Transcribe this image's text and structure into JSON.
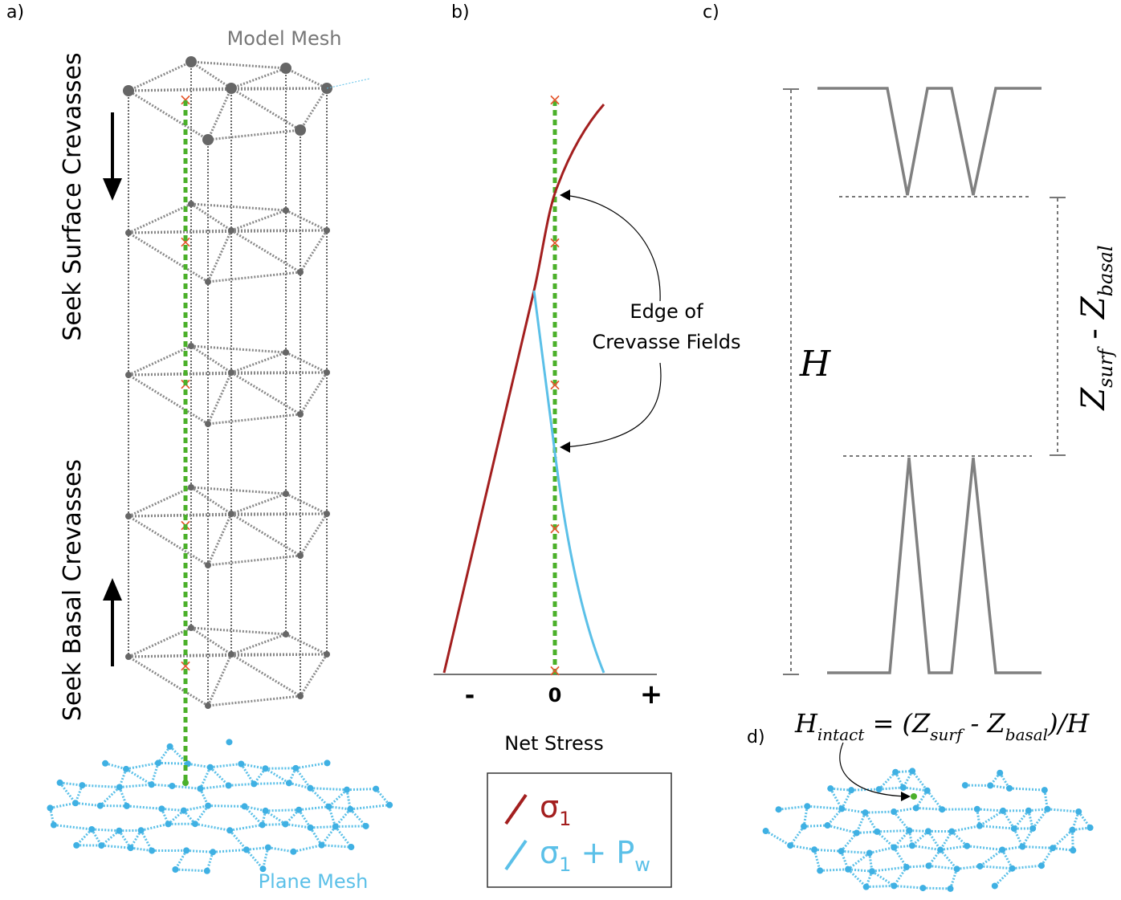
{
  "panels": {
    "a": "a)",
    "b": "b)",
    "c": "c)",
    "d": "d)"
  },
  "panel_a": {
    "model_mesh": "Model Mesh",
    "seek_surface": "Seek Surface Crevasses",
    "seek_basal": "Seek Basal Crevasses",
    "plane_mesh": "Plane Mesh"
  },
  "panel_b": {
    "annotation": [
      "Edge of",
      "Crevasse Fields"
    ],
    "axis_ticks": [
      "-",
      "0",
      "+"
    ],
    "axis_label": "Net Stress",
    "legend": [
      {
        "symbol": "σ",
        "sub": "1",
        "color": "#a31f1f"
      },
      {
        "symbol": "σ",
        "sub": "1",
        "suffix": " + P",
        "suffix_sub": "w",
        "color": "#5bc0e8"
      }
    ]
  },
  "panel_c": {
    "h": "H",
    "z1": "Z",
    "z1_sub": "surf",
    "minus": "-",
    "z2": "Z",
    "z2_sub": "basal"
  },
  "panel_d": {
    "equation": [
      "H",
      "intact",
      " = (Z",
      "surf",
      " - Z",
      "basal",
      ")/H"
    ]
  }
}
